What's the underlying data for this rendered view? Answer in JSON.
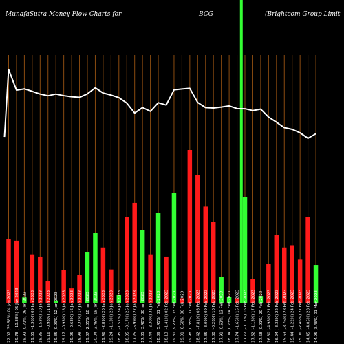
{
  "header": {
    "left": "MunafaSutra  Money Flow  Charts for",
    "center": "BCG",
    "right": "(Brightcom Group Limit"
  },
  "colors": {
    "background": "#000000",
    "gridline": "#8a4b10",
    "inflow": "#ff1a1a",
    "outflow": "#33ff33",
    "price_line": "#ffffff",
    "highlight": "#33ff33"
  },
  "chart_data": {
    "type": "bar",
    "description": "Daily money flow bars with overlaid price line",
    "categories": [
      "22.07 (39.58%) 04 Jan 2023",
      "19.78 (-10.38%) 05 Jan 2023",
      "19.92 (0.71%) 06 Jan 2023",
      "19.65 (-1.36%) 09 Jan 2023",
      "19.35 (-1.53%) 10 Jan 2023",
      "19.16 (-0.98%) 11 Jan 2023",
      "19.35 (0.99%) 12 Jan 2023",
      "19.17 (-0.93%) 13 Jan 2023",
      "19.05 (-0.63%) 16 Jan 2023",
      "18.98 (-0.37%) 17 Jan 2023",
      "19.37 (2.05%) 18 Jan 2023",
      "20.04 (3.46%) 19 Jan 2023",
      "19.46 (-2.89%) 20 Jan 2023",
      "19.24 (-1.13%) 23 Jan 2023",
      "18.95 (-1.51%) 24 Jan 2023",
      "18.35 (-3.17%) 25 Jan 2023",
      "17.25 (-5.99%) 27 Jan 2023",
      "17.85 (3.48%) 30 Jan 2023",
      "17.44 (-2.30%) 31 Jan 2023",
      "18.39 (5.45%) 01 Feb 2023",
      "18.13 (-1.41%) 02 Feb 2023",
      "19.81 (9.27%) 03 Feb 2023",
      "19.91 (0.50%) 06 Feb 2023",
      "19.98 (0.35%) 07 Feb 2023",
      "18.42 (-7.81%) 08 Feb 2023",
      "17.85 (-3.09%) 09 Feb 2023",
      "17.80 (-0.28%) 10 Feb 2023",
      "17.91 (0.62%) 13 Feb 2023",
      "18.04 (0.73%) 14 Feb 2023",
      "17.74 (-1.66%) 15 Feb 2023",
      "17.72 (-0.11%) 16 Feb 2023",
      "17.52 (-1.13%) 17 Feb 2023",
      "17.68 (0.91%) 20 Feb 2023",
      "16.80 (-4.98%) 21 Feb 2023",
      "16.24 (-3.33%) 22 Feb 2023",
      "15.63 (-3.76%) 23 Feb 2023",
      "15.44 (-1.22%) 24 Feb 2023",
      "15.06 (-2.46%) 27 Feb 2023",
      "14.45 (-4.05%) 28 Feb 2023",
      "14.95 (3.46%) 01 Mar 2023"
    ],
    "series": [
      {
        "values": [
          84,
          82,
          7,
          64,
          61,
          29,
          3,
          43,
          19,
          37,
          67,
          92,
          73,
          44,
          10,
          113,
          132,
          96,
          64,
          119,
          61,
          145,
          6,
          202,
          169,
          127,
          107,
          34,
          8,
          6,
          140,
          31,
          9,
          51,
          90,
          73,
          76,
          57,
          113,
          50
        ],
        "colors": [
          "red",
          "red",
          "green",
          "red",
          "red",
          "red",
          "green",
          "red",
          "red",
          "red",
          "green",
          "green",
          "red",
          "red",
          "green",
          "red",
          "red",
          "green",
          "red",
          "green",
          "red",
          "green",
          "red",
          "red",
          "red",
          "red",
          "red",
          "green",
          "green",
          "red",
          "green",
          "red",
          "green",
          "red",
          "red",
          "red",
          "red",
          "red",
          "red",
          "green"
        ]
      },
      {
        "values": [
          22.07,
          19.78,
          19.92,
          19.65,
          19.35,
          19.16,
          19.35,
          19.17,
          19.05,
          18.98,
          19.37,
          20.04,
          19.46,
          19.24,
          18.95,
          18.35,
          17.25,
          17.85,
          17.44,
          18.39,
          18.13,
          19.81,
          19.91,
          19.98,
          18.42,
          17.85,
          17.8,
          17.91,
          18.04,
          17.74,
          17.72,
          17.52,
          17.68,
          16.8,
          16.24,
          15.63,
          15.44,
          15.06,
          14.45,
          14.95
        ]
      }
    ],
    "first_price_point": 14.6,
    "highlight_index": 29,
    "grid": true
  }
}
